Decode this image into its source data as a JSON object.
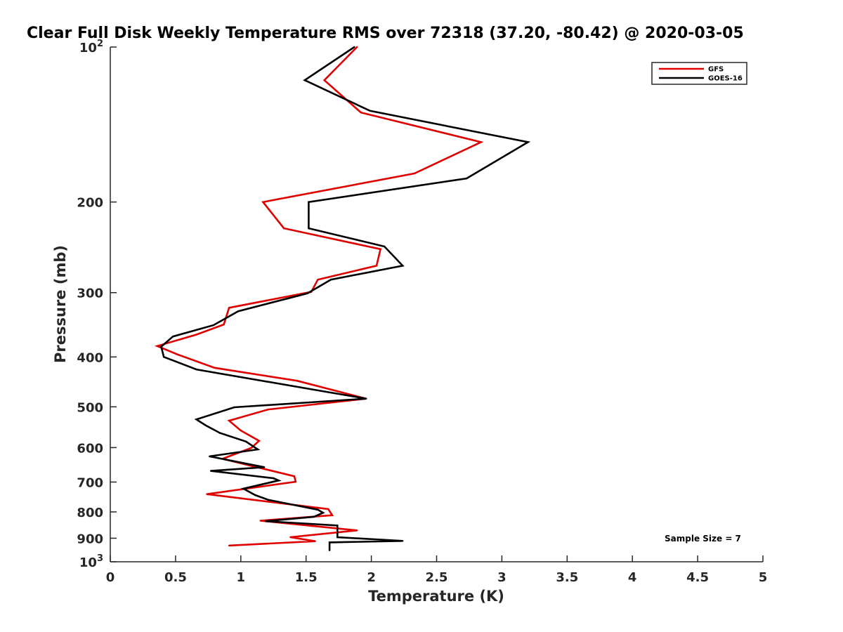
{
  "chart_data": {
    "type": "line",
    "title": "Clear Full Disk Weekly Temperature RMS over 72318 (37.20, -80.42) @ 2020-03-05",
    "xlabel": "Temperature (K)",
    "ylabel": "Pressure (mb)",
    "xlim": [
      0,
      5
    ],
    "ylim": [
      100,
      1000
    ],
    "y_scale": "log",
    "y_reversed": true,
    "grid": false,
    "legend_position": "top-right",
    "x_ticks": [
      "0",
      "0.5",
      "1",
      "1.5",
      "2",
      "2.5",
      "3",
      "3.5",
      "4",
      "4.5",
      "5"
    ],
    "y_ticks": [
      {
        "value": 100,
        "label": "10",
        "sup": "2"
      },
      {
        "value": 200,
        "label": "200",
        "sup": ""
      },
      {
        "value": 300,
        "label": "300",
        "sup": ""
      },
      {
        "value": 400,
        "label": "400",
        "sup": ""
      },
      {
        "value": 500,
        "label": "500",
        "sup": ""
      },
      {
        "value": 600,
        "label": "600",
        "sup": ""
      },
      {
        "value": 700,
        "label": "700",
        "sup": ""
      },
      {
        "value": 800,
        "label": "800",
        "sup": ""
      },
      {
        "value": 900,
        "label": "900",
        "sup": ""
      },
      {
        "value": 1000,
        "label": "10",
        "sup": "3"
      }
    ],
    "series": [
      {
        "name": "GFS",
        "color": "#e00000",
        "points": [
          [
            1.89,
            100
          ],
          [
            1.64,
            116
          ],
          [
            1.92,
            134
          ],
          [
            2.84,
            153
          ],
          [
            2.33,
            176
          ],
          [
            1.17,
            200
          ],
          [
            1.33,
            225
          ],
          [
            2.07,
            247
          ],
          [
            2.04,
            266
          ],
          [
            1.59,
            283
          ],
          [
            1.54,
            299
          ],
          [
            0.91,
            321
          ],
          [
            0.87,
            346
          ],
          [
            0.66,
            362
          ],
          [
            0.36,
            381
          ],
          [
            0.52,
            396
          ],
          [
            0.8,
            420
          ],
          [
            1.43,
            445
          ],
          [
            1.96,
            482
          ],
          [
            1.21,
            506
          ],
          [
            0.91,
            532
          ],
          [
            1.0,
            556
          ],
          [
            1.14,
            582
          ],
          [
            1.08,
            601
          ],
          [
            0.86,
            631
          ],
          [
            1.09,
            652
          ],
          [
            1.41,
            682
          ],
          [
            1.42,
            699
          ],
          [
            0.74,
            739
          ],
          [
            1.67,
            790
          ],
          [
            1.7,
            812
          ],
          [
            1.15,
            832
          ],
          [
            1.89,
            869
          ],
          [
            1.38,
            896
          ],
          [
            1.57,
            912
          ],
          [
            0.91,
            930
          ]
        ]
      },
      {
        "name": "GOES-16",
        "color": "#000000",
        "points": [
          [
            1.87,
            100
          ],
          [
            1.49,
            116
          ],
          [
            1.99,
            133
          ],
          [
            3.2,
            153
          ],
          [
            2.73,
            180
          ],
          [
            1.52,
            200
          ],
          [
            1.52,
            225
          ],
          [
            2.1,
            244
          ],
          [
            2.24,
            266
          ],
          [
            1.69,
            283
          ],
          [
            1.51,
            301
          ],
          [
            0.98,
            326
          ],
          [
            0.79,
            347
          ],
          [
            0.48,
            365
          ],
          [
            0.39,
            382
          ],
          [
            0.41,
            400
          ],
          [
            0.66,
            423
          ],
          [
            1.62,
            466
          ],
          [
            1.96,
            482
          ],
          [
            0.95,
            501
          ],
          [
            0.66,
            529
          ],
          [
            0.73,
            543
          ],
          [
            0.84,
            562
          ],
          [
            1.04,
            584
          ],
          [
            1.13,
            605
          ],
          [
            0.76,
            624
          ],
          [
            1.18,
            655
          ],
          [
            0.77,
            666
          ],
          [
            1.25,
            688
          ],
          [
            1.29,
            695
          ],
          [
            1.02,
            721
          ],
          [
            1.11,
            742
          ],
          [
            1.21,
            758
          ],
          [
            1.59,
            792
          ],
          [
            1.63,
            803
          ],
          [
            1.56,
            818
          ],
          [
            1.19,
            834
          ],
          [
            1.74,
            850
          ],
          [
            1.74,
            896
          ],
          [
            2.24,
            911
          ],
          [
            1.68,
            917
          ],
          [
            1.68,
            950
          ]
        ]
      }
    ],
    "annotation": "Sample Size = 7"
  }
}
